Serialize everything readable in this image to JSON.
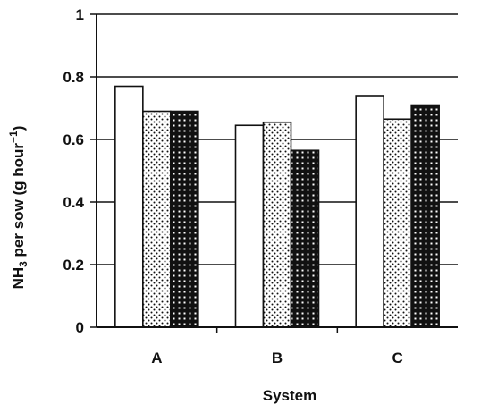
{
  "chart_data": {
    "type": "bar",
    "xlabel": "System",
    "ylabel": {
      "prefix": "NH",
      "sub": "3",
      "middle": " per sow (g hour",
      "sup": "−1",
      "suffix": ")"
    },
    "ylim": [
      0,
      1
    ],
    "yticks": [
      "0",
      "0.2",
      "0.4",
      "0.6",
      "0.8",
      "1"
    ],
    "ytick_values": [
      0,
      0.2,
      0.4,
      0.6,
      0.8,
      1
    ],
    "grid": true,
    "legend": "none",
    "categories": [
      "A",
      "B",
      "C"
    ],
    "series": [
      {
        "pattern": "white",
        "values": [
          0.77,
          0.645,
          0.74
        ]
      },
      {
        "pattern": "dotted",
        "values": [
          0.69,
          0.655,
          0.665
        ]
      },
      {
        "pattern": "dark-checker",
        "values": [
          0.69,
          0.565,
          0.71
        ]
      }
    ]
  }
}
